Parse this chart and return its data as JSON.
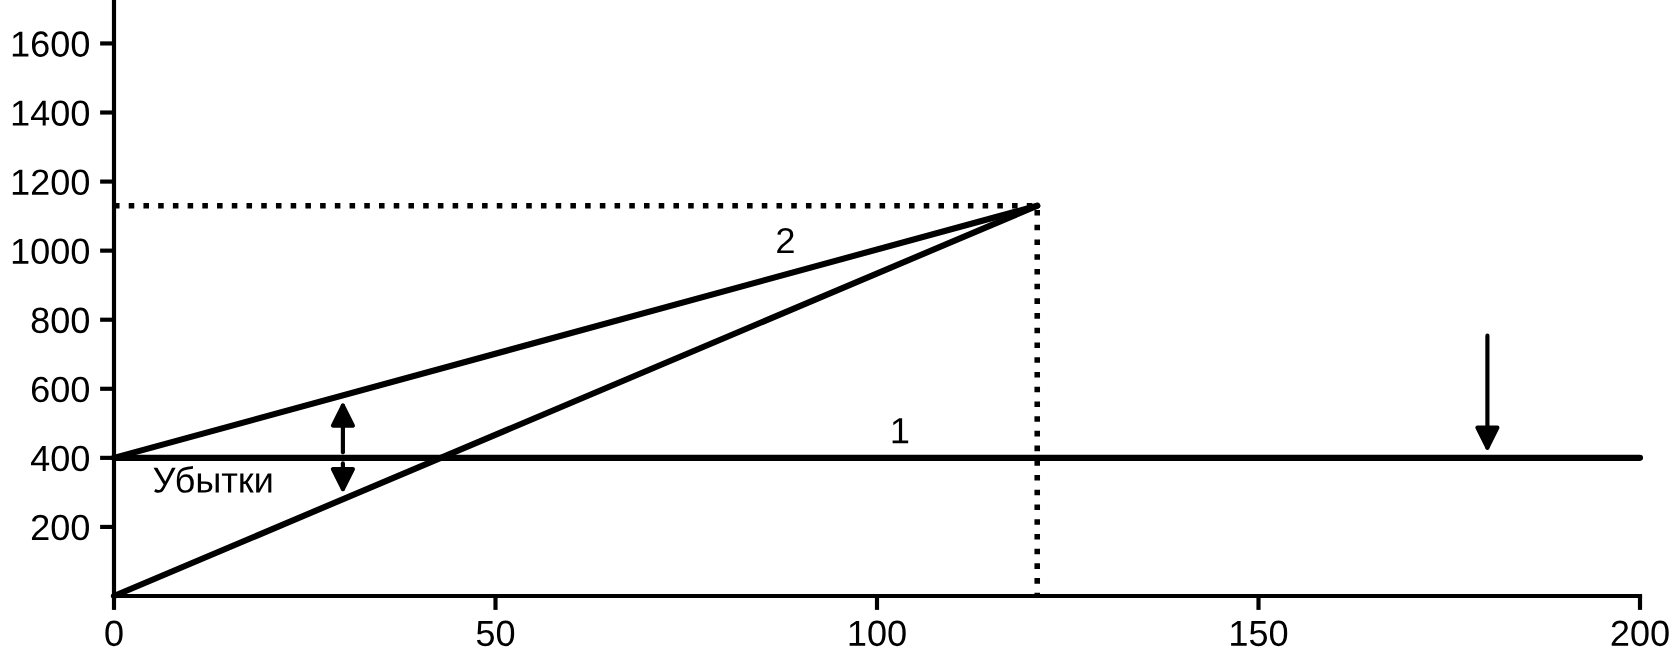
{
  "chart_data": {
    "type": "line",
    "xlim": [
      0,
      200
    ],
    "ylim": [
      0,
      1720
    ],
    "xticks": [
      0,
      50,
      100,
      150,
      200
    ],
    "yticks": [
      200,
      400,
      600,
      800,
      1000,
      1200,
      1400,
      1600
    ],
    "grid": false,
    "legend": false,
    "marker": "none",
    "line_style": "solid",
    "series": [
      {
        "color": "#000000",
        "x": [
          0,
          200
        ],
        "values": [
          400,
          400
        ]
      },
      {
        "color": "#000000",
        "x": [
          0,
          121
        ],
        "values": [
          400,
          1130
        ]
      },
      {
        "color": "#000000",
        "x": [
          0,
          121
        ],
        "values": [
          0,
          1130
        ]
      },
      {
        "color": "#000000",
        "x": [
          0,
          121,
          121
        ],
        "values": [
          1130,
          1130,
          0
        ],
        "line_style": "dotted"
      }
    ],
    "annotations": [
      "1",
      "2",
      "Убытки"
    ]
  }
}
